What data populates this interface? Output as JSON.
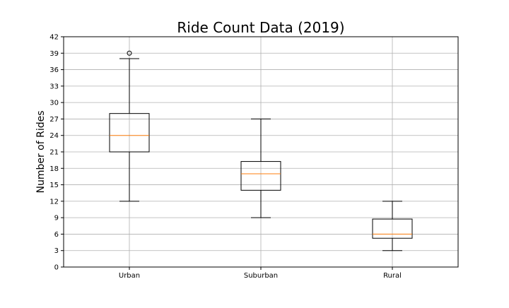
{
  "chart_data": {
    "type": "box",
    "title": "Ride Count Data (2019)",
    "xlabel": "",
    "ylabel": "Number of Rides",
    "ylim": [
      0,
      42
    ],
    "yticks": [
      0,
      3,
      6,
      9,
      12,
      15,
      18,
      21,
      24,
      27,
      30,
      33,
      36,
      39,
      42
    ],
    "grid": true,
    "categories": [
      "Urban",
      "Suburban",
      "Rural"
    ],
    "boxes": [
      {
        "category": "Urban",
        "whisker_low": 12,
        "q1": 21,
        "median": 24,
        "q3": 28,
        "whisker_high": 38,
        "outliers": [
          39
        ]
      },
      {
        "category": "Suburban",
        "whisker_low": 9,
        "q1": 14,
        "median": 17,
        "q3": 19.25,
        "whisker_high": 27,
        "outliers": []
      },
      {
        "category": "Rural",
        "whisker_low": 3,
        "q1": 5.25,
        "median": 6,
        "q3": 8.75,
        "whisker_high": 12,
        "outliers": []
      }
    ],
    "colors": {
      "box": "#000000",
      "median": "#ff7f0e",
      "grid": "#b0b0b0"
    }
  }
}
